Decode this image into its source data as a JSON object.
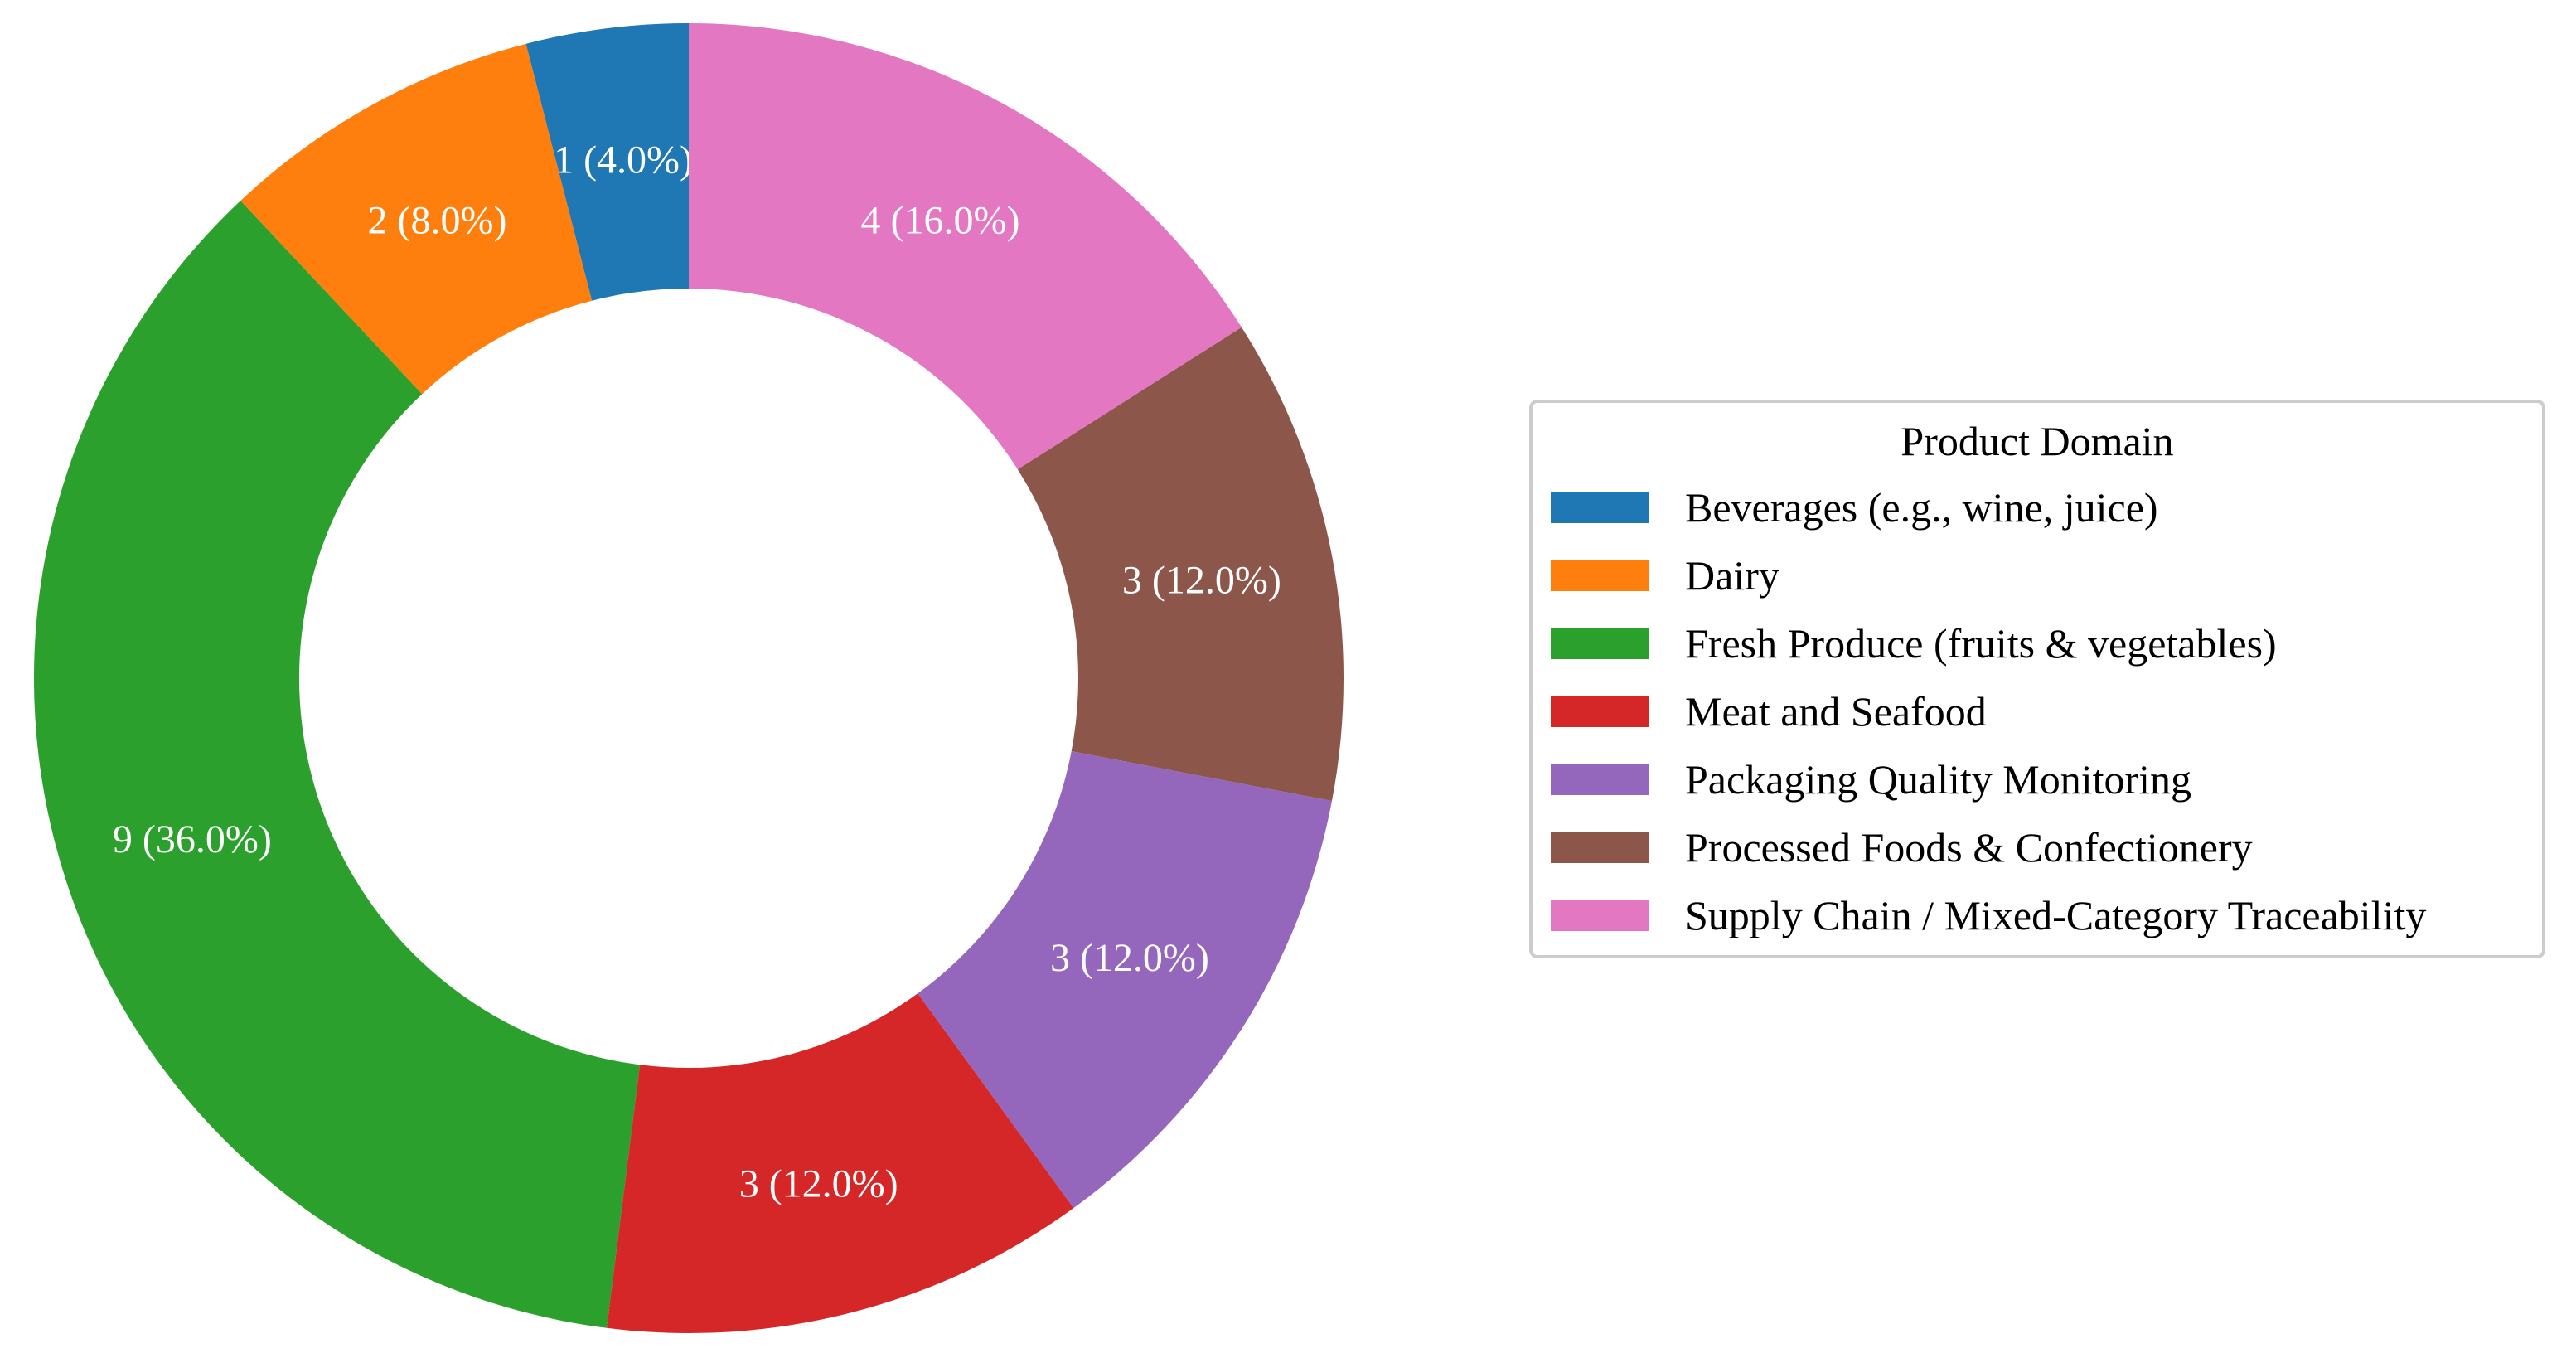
{
  "chart_data": {
    "type": "pie",
    "variant": "donut",
    "legend_title": "Product Domain",
    "legend_position": "right",
    "categories": [
      "Beverages (e.g., wine, juice)",
      "Dairy",
      "Fresh Produce (fruits & vegetables)",
      "Meat and Seafood",
      "Packaging Quality Monitoring",
      "Processed Foods & Confectionery",
      "Supply Chain / Mixed-Category Traceability"
    ],
    "values": [
      1,
      2,
      9,
      3,
      3,
      3,
      4
    ],
    "labels": [
      "1 (4.0%)",
      "2 (8.0%)",
      "9 (36.0%)",
      "3 (12.0%)",
      "3 (12.0%)",
      "3 (12.0%)",
      "4 (16.0%)"
    ],
    "colors": [
      "#1f77b4",
      "#ff7f0e",
      "#2ca02c",
      "#d62728",
      "#9467bd",
      "#8c564b",
      "#e377c2"
    ]
  }
}
